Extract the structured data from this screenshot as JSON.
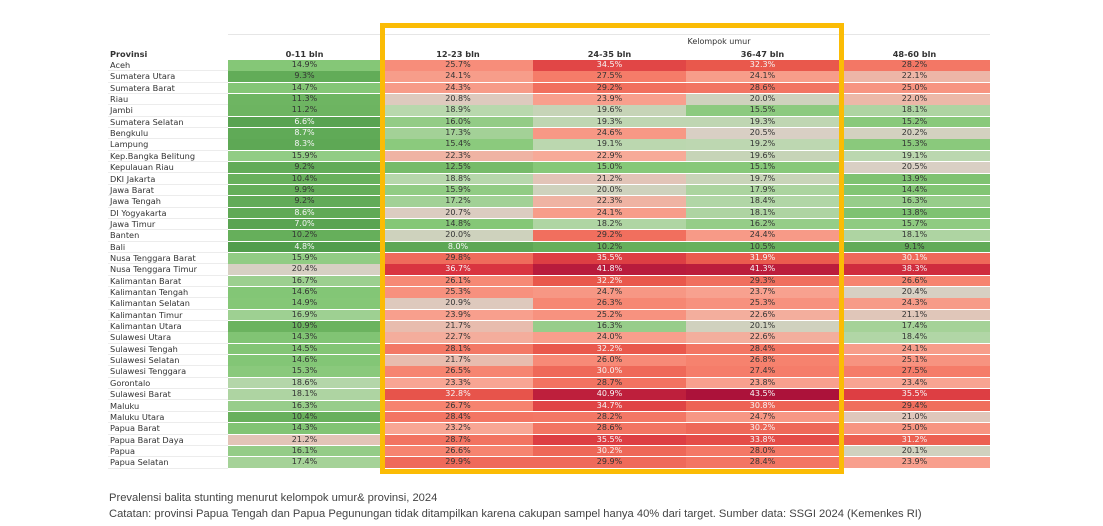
{
  "chart_data": {
    "type": "heatmap",
    "title": "Prevalensi balita stunting menurut kelompok umur& provinsi, 2024",
    "note": "Catatan: provinsi Papua Tengah dan Papua Pegunungan tidak ditampilkan karena cakupan sampel hanya 40% dari target. Sumber data: SSGI 2024 (Kemenkes RI)",
    "row_header": "Provinsi",
    "column_group_label": "Kelompok umur",
    "columns": [
      "0-11 bln",
      "12-23 bln",
      "24-35 bln",
      "36-47 bln",
      "48-60 bln"
    ],
    "highlighted_columns": [
      "12-23 bln",
      "24-35 bln",
      "36-47 bln"
    ],
    "value_unit": "%",
    "color_scale": {
      "low": "#4e9a4a",
      "mid": "#d9cfc4",
      "high": "#b5113a"
    },
    "highlight_color": "#fbbc05",
    "rows": [
      {
        "province": "Aceh",
        "values": [
          14.9,
          25.7,
          34.5,
          32.3,
          28.2
        ]
      },
      {
        "province": "Sumatera Utara",
        "values": [
          9.3,
          24.1,
          27.5,
          24.1,
          22.1
        ]
      },
      {
        "province": "Sumatera Barat",
        "values": [
          14.7,
          24.3,
          29.2,
          28.6,
          25.0
        ]
      },
      {
        "province": "Riau",
        "values": [
          11.3,
          20.8,
          23.9,
          20.0,
          22.0
        ]
      },
      {
        "province": "Jambi",
        "values": [
          11.2,
          18.9,
          19.6,
          15.5,
          18.1
        ]
      },
      {
        "province": "Sumatera Selatan",
        "values": [
          6.6,
          16.0,
          19.3,
          19.3,
          15.2
        ]
      },
      {
        "province": "Bengkulu",
        "values": [
          8.7,
          17.3,
          24.6,
          20.5,
          20.2
        ]
      },
      {
        "province": "Lampung",
        "values": [
          8.3,
          15.4,
          19.1,
          19.2,
          15.3
        ]
      },
      {
        "province": "Kep.Bangka Belitung",
        "values": [
          15.9,
          22.3,
          22.9,
          19.6,
          19.1
        ]
      },
      {
        "province": "Kepulauan Riau",
        "values": [
          9.2,
          12.5,
          15.0,
          15.1,
          20.5
        ]
      },
      {
        "province": "DKI Jakarta",
        "values": [
          10.4,
          18.8,
          21.2,
          19.7,
          13.9
        ]
      },
      {
        "province": "Jawa Barat",
        "values": [
          9.9,
          15.9,
          20.0,
          17.9,
          14.4
        ]
      },
      {
        "province": "Jawa Tengah",
        "values": [
          9.2,
          17.2,
          22.3,
          18.4,
          16.3
        ]
      },
      {
        "province": "DI Yogyakarta",
        "values": [
          8.6,
          20.7,
          24.1,
          18.1,
          13.8
        ]
      },
      {
        "province": "Jawa Timur",
        "values": [
          7.0,
          14.8,
          18.2,
          16.2,
          15.7
        ]
      },
      {
        "province": "Banten",
        "values": [
          10.2,
          20.0,
          29.2,
          24.4,
          18.1
        ]
      },
      {
        "province": "Bali",
        "values": [
          4.8,
          8.0,
          10.2,
          10.5,
          9.1
        ]
      },
      {
        "province": "Nusa Tenggara Barat",
        "values": [
          15.9,
          29.8,
          35.5,
          31.9,
          30.1
        ]
      },
      {
        "province": "Nusa Tenggara Timur",
        "values": [
          20.4,
          36.7,
          41.8,
          41.3,
          38.3
        ]
      },
      {
        "province": "Kalimantan Barat",
        "values": [
          16.7,
          26.1,
          32.2,
          29.3,
          26.6
        ]
      },
      {
        "province": "Kalimantan Tengah",
        "values": [
          14.6,
          25.3,
          24.7,
          23.7,
          20.4
        ]
      },
      {
        "province": "Kalimantan Selatan",
        "values": [
          14.9,
          20.9,
          26.3,
          25.3,
          24.3
        ]
      },
      {
        "province": "Kalimantan Timur",
        "values": [
          16.9,
          23.9,
          25.2,
          22.6,
          21.1
        ]
      },
      {
        "province": "Kalimantan Utara",
        "values": [
          10.9,
          21.7,
          16.3,
          20.1,
          17.4
        ]
      },
      {
        "province": "Sulawesi Utara",
        "values": [
          14.3,
          22.7,
          24.0,
          22.6,
          18.4
        ]
      },
      {
        "province": "Sulawesi Tengah",
        "values": [
          14.5,
          28.1,
          32.2,
          28.4,
          24.1
        ]
      },
      {
        "province": "Sulawesi Selatan",
        "values": [
          14.6,
          21.7,
          26.0,
          26.8,
          25.1
        ]
      },
      {
        "province": "Sulawesi Tenggara",
        "values": [
          15.3,
          26.5,
          30.0,
          27.4,
          27.5
        ]
      },
      {
        "province": "Gorontalo",
        "values": [
          18.6,
          23.3,
          28.7,
          23.8,
          23.4
        ]
      },
      {
        "province": "Sulawesi Barat",
        "values": [
          18.1,
          32.8,
          40.9,
          43.5,
          35.5
        ]
      },
      {
        "province": "Maluku",
        "values": [
          16.3,
          26.7,
          34.7,
          30.8,
          29.4
        ]
      },
      {
        "province": "Maluku Utara",
        "values": [
          10.4,
          28.4,
          28.2,
          24.7,
          21.0
        ]
      },
      {
        "province": "Papua Barat",
        "values": [
          14.3,
          23.2,
          28.6,
          30.2,
          25.0
        ]
      },
      {
        "province": "Papua Barat Daya",
        "values": [
          21.2,
          28.7,
          35.5,
          33.8,
          31.2
        ]
      },
      {
        "province": "Papua",
        "values": [
          16.1,
          26.6,
          30.2,
          28.0,
          20.1
        ]
      },
      {
        "province": "Papua Selatan",
        "values": [
          17.4,
          29.9,
          29.9,
          28.4,
          23.9
        ]
      }
    ]
  }
}
